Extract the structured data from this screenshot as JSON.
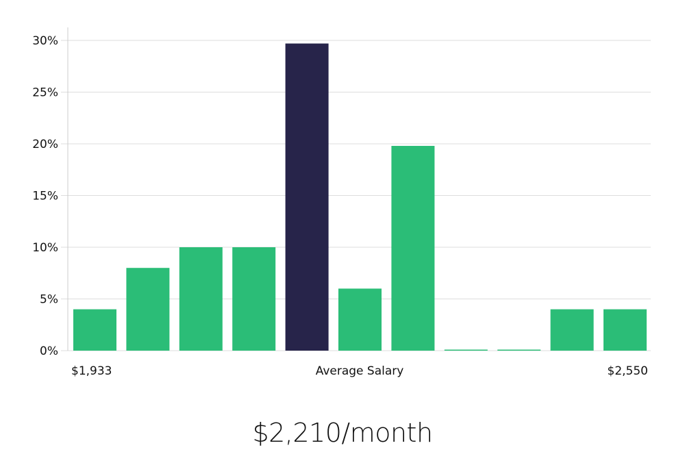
{
  "chart_data": {
    "type": "bar",
    "title": "",
    "xlabel": "Average Salary",
    "ylabel": "",
    "ylim": [
      0,
      30
    ],
    "yticks": [
      "0%",
      "5%",
      "10%",
      "15%",
      "20%",
      "25%",
      "30%"
    ],
    "grid": true,
    "legend": null,
    "x_range_labels": {
      "min": "$1,933",
      "center": "Average Salary",
      "max": "$2,550"
    },
    "categories": [
      "bin1",
      "bin2",
      "bin3",
      "bin4",
      "bin5",
      "bin6",
      "bin7",
      "bin8",
      "bin9",
      "bin10",
      "bin11"
    ],
    "values": [
      4,
      8,
      10,
      10,
      29.7,
      6,
      19.8,
      0,
      0,
      4,
      4
    ],
    "highlight_index": 4,
    "colors": {
      "bar": "#2bbd77",
      "highlight": "#27244a",
      "grid": "#dddddd",
      "axis": "#cccccc"
    }
  },
  "summary": {
    "average_salary_label": "$2,210/month"
  },
  "labels": {
    "min": "$1,933",
    "center": "Average Salary",
    "max": "$2,550"
  }
}
